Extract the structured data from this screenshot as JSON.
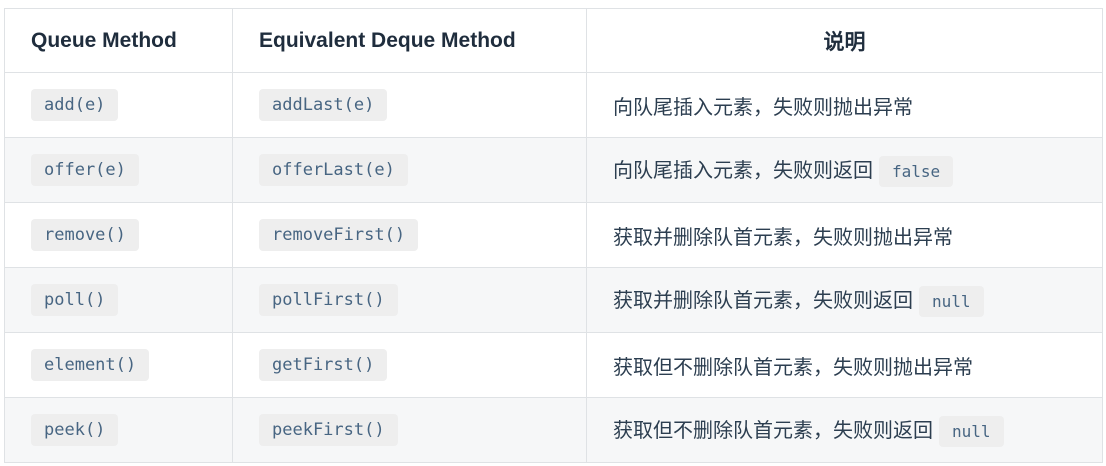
{
  "table": {
    "headers": [
      "Queue Method",
      "Equivalent Deque Method",
      "说明"
    ],
    "rows": [
      {
        "queue": "add(e)",
        "deque": "addLast(e)",
        "desc": "向队尾插入元素，失败则抛出异常",
        "desc_code": ""
      },
      {
        "queue": "offer(e)",
        "deque": "offerLast(e)",
        "desc": "向队尾插入元素，失败则返回",
        "desc_code": "false"
      },
      {
        "queue": "remove()",
        "deque": "removeFirst()",
        "desc": "获取并删除队首元素，失败则抛出异常",
        "desc_code": ""
      },
      {
        "queue": "poll()",
        "deque": "pollFirst()",
        "desc": "获取并删除队首元素，失败则返回",
        "desc_code": "null"
      },
      {
        "queue": "element()",
        "deque": "getFirst()",
        "desc": "获取但不删除队首元素，失败则抛出异常",
        "desc_code": ""
      },
      {
        "queue": "peek()",
        "deque": "peekFirst()",
        "desc": "获取但不删除队首元素，失败则返回",
        "desc_code": "null"
      }
    ]
  }
}
